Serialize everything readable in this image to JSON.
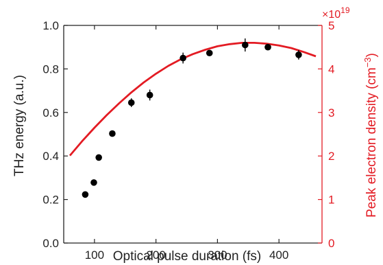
{
  "chart_data": {
    "type": "scatter",
    "xlabel": "Optical pulse duration (fs)",
    "ylabel": "THz energy (a.u.)",
    "y2label_main": "Peak electron density (cm",
    "y2label_sup": "−3",
    "y2label_end": ")",
    "y2_multiplier_base": "×10",
    "y2_multiplier_exp": "19",
    "xlim": [
      50,
      470
    ],
    "ylim": [
      0,
      1.0
    ],
    "y2lim": [
      0,
      5
    ],
    "xticks": [
      100,
      200,
      300,
      400
    ],
    "yticks": [
      0.0,
      0.2,
      0.4,
      0.6,
      0.8,
      1.0
    ],
    "ytick_labels": [
      "0.0",
      "0.2",
      "0.4",
      "0.6",
      "0.8",
      "1.0"
    ],
    "y2ticks": [
      0,
      1,
      2,
      3,
      4,
      5
    ],
    "series": [
      {
        "color": "#000000",
        "axis": "left",
        "points": [
          {
            "x": 85,
            "y": 0.223,
            "err": 0.012
          },
          {
            "x": 99,
            "y": 0.278,
            "err": 0.012
          },
          {
            "x": 107,
            "y": 0.393,
            "err": 0.012
          },
          {
            "x": 129,
            "y": 0.503,
            "err": 0.012
          },
          {
            "x": 160,
            "y": 0.645,
            "err": 0.02
          },
          {
            "x": 190,
            "y": 0.68,
            "err": 0.025
          },
          {
            "x": 244,
            "y": 0.85,
            "err": 0.025
          },
          {
            "x": 287,
            "y": 0.873,
            "err": 0.012
          },
          {
            "x": 345,
            "y": 0.91,
            "err": 0.03
          },
          {
            "x": 382,
            "y": 0.9,
            "err": 0.012
          },
          {
            "x": 432,
            "y": 0.865,
            "err": 0.022
          }
        ]
      },
      {
        "color": "#e31b23",
        "axis": "right",
        "type": "line",
        "x": [
          60,
          80,
          100,
          120,
          140,
          160,
          180,
          200,
          220,
          240,
          260,
          280,
          300,
          320,
          340,
          360,
          380,
          400,
          420,
          440,
          460
        ],
        "y": [
          2.01,
          2.34,
          2.65,
          2.94,
          3.21,
          3.46,
          3.69,
          3.89,
          4.07,
          4.22,
          4.34,
          4.44,
          4.52,
          4.57,
          4.6,
          4.6,
          4.58,
          4.54,
          4.48,
          4.39,
          4.29
        ]
      }
    ],
    "colors": {
      "axis_left": "#222222",
      "axis_right": "#e31b23",
      "grid": false
    }
  }
}
